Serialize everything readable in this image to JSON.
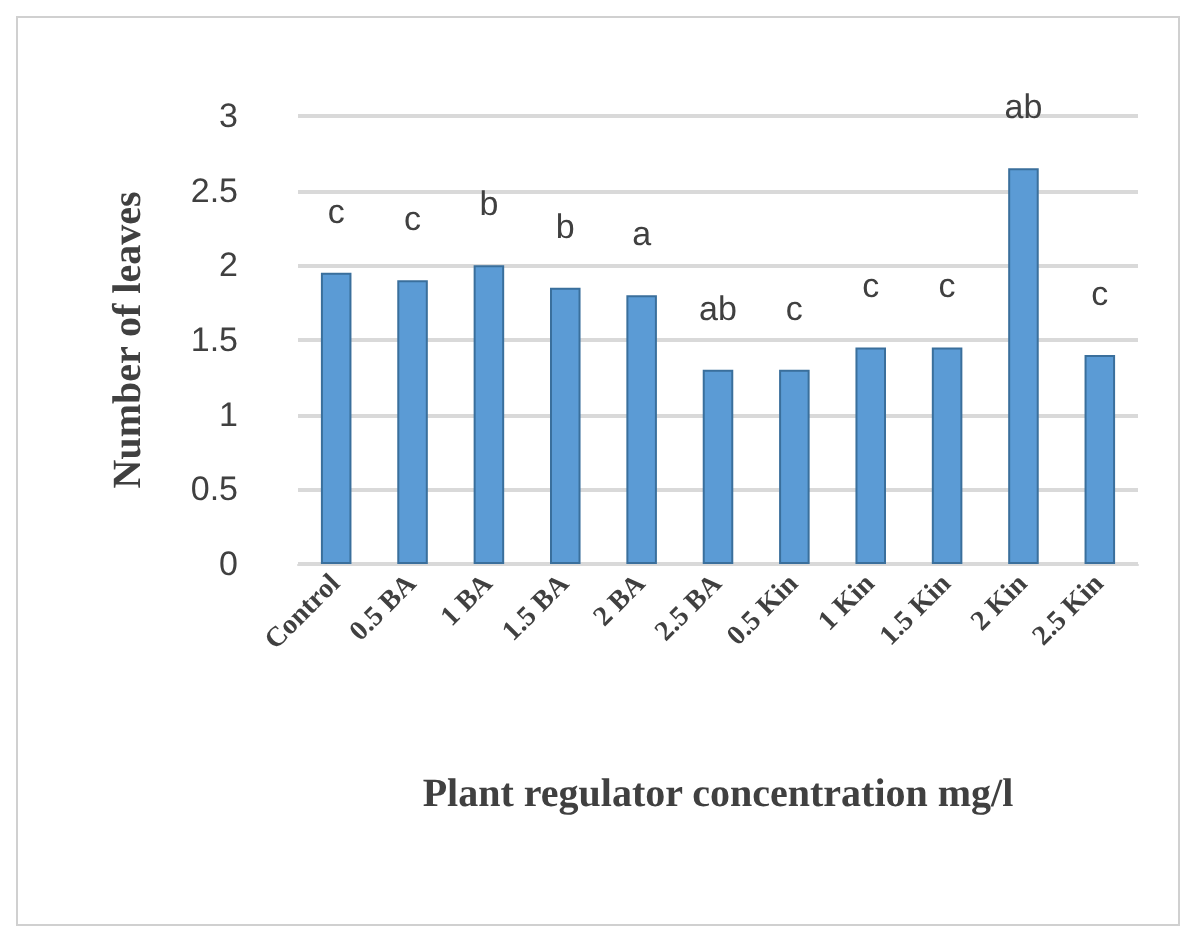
{
  "chart_data": {
    "type": "bar",
    "xlabel": "Plant regulator concentration mg/l",
    "ylabel": "Number of leaves",
    "categories": [
      "Control",
      "0.5 BA",
      "1 BA",
      "1.5 BA",
      "2 BA",
      "2.5 BA",
      "0.5 Kin",
      "1 Kin",
      "1.5 Kin",
      "2 Kin",
      "2.5 Kin"
    ],
    "values": [
      1.95,
      1.9,
      2.0,
      1.85,
      1.8,
      1.3,
      1.3,
      1.45,
      1.45,
      2.65,
      1.4
    ],
    "color": "#5b9bd5",
    "ylim": [
      0,
      3
    ],
    "yticks": [
      0,
      0.5,
      1,
      1.5,
      2,
      2.5,
      3
    ],
    "grid": "y",
    "annotations": [
      "c",
      "c",
      "b",
      "b",
      "a",
      "ab",
      "c",
      "c",
      "c",
      "ab",
      "c"
    ]
  }
}
